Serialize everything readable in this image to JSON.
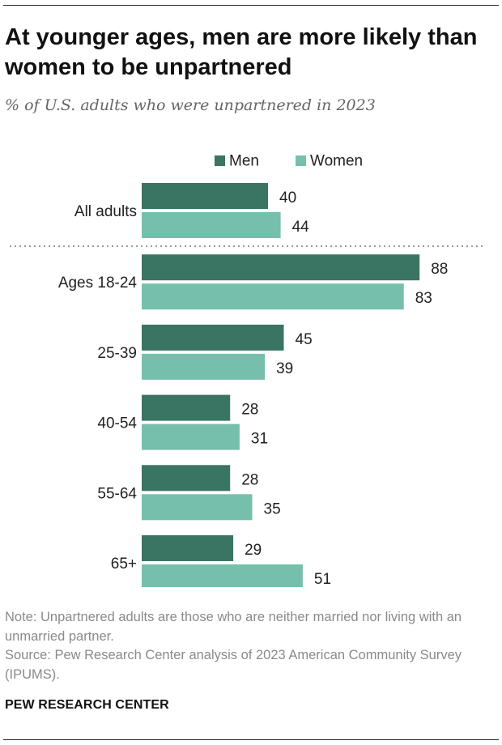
{
  "title": "At younger ages, men are more likely than women to be unpartnered",
  "subtitle": "% of U.S. adults who were unpartnered in 2023",
  "chart_data": {
    "type": "bar",
    "orientation": "horizontal",
    "categories": [
      "All adults",
      "Ages 18-24",
      "25-39",
      "40-54",
      "55-64",
      "65+"
    ],
    "series": [
      {
        "name": "Men",
        "color": "#3a7463",
        "values": [
          40,
          88,
          45,
          28,
          28,
          29
        ]
      },
      {
        "name": "Women",
        "color": "#76bfad",
        "values": [
          44,
          83,
          39,
          31,
          35,
          51
        ]
      }
    ],
    "legend": [
      "Men",
      "Women"
    ],
    "legend_position": "top",
    "xlim": [
      0,
      100
    ],
    "separator_after_first_category": true,
    "title": "At younger ages, men are more likely than women to be unpartnered",
    "xlabel": "",
    "ylabel": ""
  },
  "footer": {
    "note": "Note: Unpartnered adults are those who are neither married nor living with an unmarried partner.",
    "source": "Source: Pew Research Center analysis of 2023 American Community Survey (IPUMS).",
    "brand": "PEW RESEARCH CENTER"
  }
}
